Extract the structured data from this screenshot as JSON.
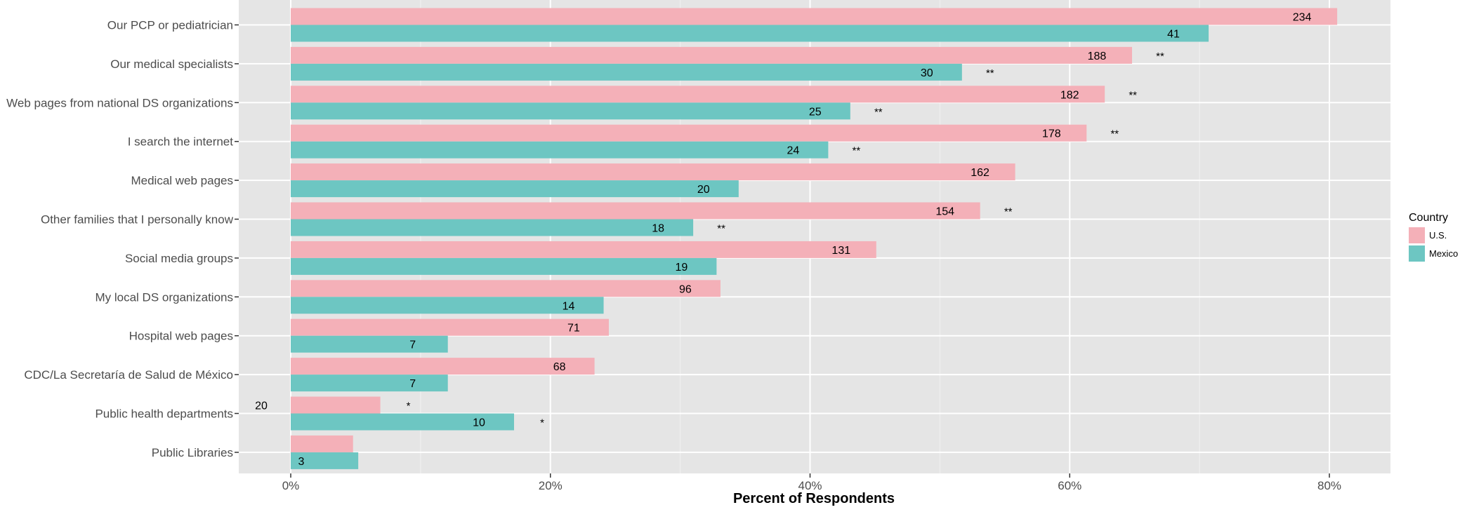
{
  "chart_data": {
    "type": "bar",
    "orientation": "horizontal",
    "categories": [
      "Our PCP or pediatrician",
      "Our medical specialists",
      "Web pages from national DS organizations",
      "I search the internet",
      "Medical web pages",
      "Other families that I personally know",
      "Social media groups",
      "My local DS organizations",
      "Hospital web pages",
      "CDC/La Secretaría de Salud de México",
      "Public health departments",
      "Public Libraries"
    ],
    "series": [
      {
        "name": "U.S.",
        "color": "#F4B0B8",
        "values": [
          80.6,
          64.8,
          62.7,
          61.3,
          55.8,
          53.1,
          45.1,
          33.1,
          24.5,
          23.4,
          6.9,
          4.8
        ],
        "counts": [
          "234",
          "188",
          "182",
          "178",
          "162",
          "154",
          "131",
          "96",
          "71",
          "68",
          "20",
          ""
        ],
        "significance": [
          "",
          "**",
          "**",
          "**",
          "",
          "**",
          "",
          "",
          "",
          "",
          "*",
          ""
        ]
      },
      {
        "name": "Mexico",
        "color": "#6DC6C2",
        "values": [
          70.7,
          51.7,
          43.1,
          41.4,
          34.5,
          31.0,
          32.8,
          24.1,
          12.1,
          12.1,
          17.2,
          5.2
        ],
        "counts": [
          "41",
          "30",
          "25",
          "24",
          "20",
          "18",
          "19",
          "14",
          "7",
          "7",
          "10",
          "3"
        ],
        "significance": [
          "",
          "**",
          "**",
          "**",
          "",
          "**",
          "",
          "",
          "",
          "",
          "*",
          ""
        ]
      }
    ],
    "xlabel": "Percent of Respondents",
    "ylabel": "",
    "xlim": [
      -4,
      84
    ],
    "xticks": [
      0,
      20,
      40,
      60,
      80
    ],
    "xtick_labels": [
      "0%",
      "20%",
      "40%",
      "60%",
      "80%"
    ],
    "legend": {
      "title": "Country",
      "entries": [
        "U.S.",
        "Mexico"
      ],
      "position": "right"
    },
    "grid": true,
    "panel_background": "#E5E5E5",
    "grid_color": "#FFFFFF"
  }
}
